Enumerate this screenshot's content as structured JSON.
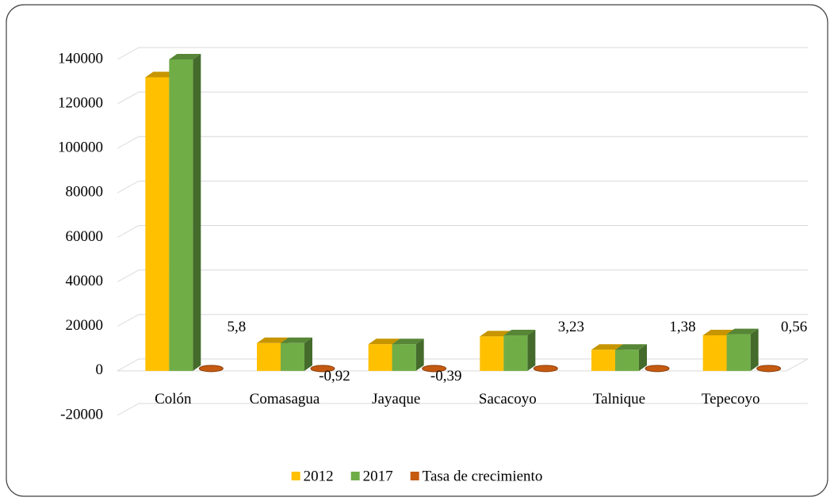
{
  "chart_data": {
    "type": "bar3d",
    "categories": [
      "Colón",
      "Comasagua",
      "Jayaque",
      "Sacacoyo",
      "Talnique",
      "Tepecoyo"
    ],
    "series": [
      {
        "name": "2012",
        "color": "#ffc000",
        "values": [
          132000,
          12500,
          12000,
          15500,
          9500,
          16000
        ]
      },
      {
        "name": "2017",
        "color": "#70ad47",
        "values": [
          140000,
          12500,
          12000,
          16000,
          9500,
          16500
        ]
      },
      {
        "name": "Tasa de crecimiento",
        "color": "#c55a11",
        "values": [
          5.8,
          -0.92,
          -0.39,
          3.23,
          1.38,
          0.56
        ],
        "value_labels": [
          "5,8",
          "-0,92",
          "-0,39",
          "3,23",
          "1,38",
          "0,56"
        ]
      }
    ],
    "ylim": [
      -20000,
      140000
    ],
    "yticks": [
      -20000,
      0,
      20000,
      40000,
      60000,
      80000,
      100000,
      120000,
      140000
    ],
    "grid": true,
    "legend": "bottom"
  }
}
